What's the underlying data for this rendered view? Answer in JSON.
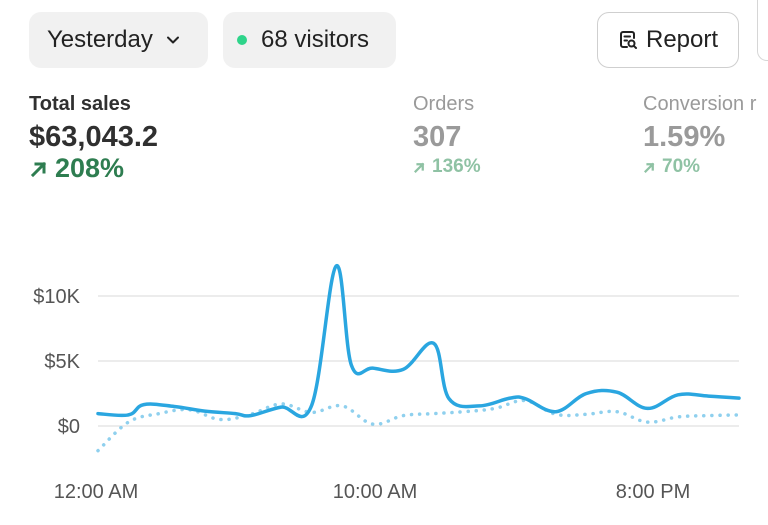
{
  "toolbar": {
    "date_range": "Yesterday",
    "visitors": "68 visitors",
    "report_label": "Report"
  },
  "metrics": [
    {
      "label": "Total sales",
      "value": "$63,043.2",
      "change": "208%"
    },
    {
      "label": "Orders",
      "value": "307",
      "change": "136%"
    },
    {
      "label": "Conversion r",
      "value": "1.59%",
      "change": "70%"
    }
  ],
  "colors": {
    "accent_line": "#2aa6e0",
    "comparison_line": "#8fd0ee",
    "visitor_dot": "#2ed48a",
    "positive_change": "#2e7d50",
    "positive_change_muted": "#8fc2a4"
  },
  "chart_data": {
    "type": "line",
    "title": "",
    "xlabel": "",
    "ylabel": "",
    "ylim": [
      -2000,
      13000
    ],
    "yticks": [
      {
        "value": 0,
        "label": "$0"
      },
      {
        "value": 5000,
        "label": "$5K"
      },
      {
        "value": 10000,
        "label": "$10K"
      }
    ],
    "xtick_labels": [
      "12:00 AM",
      "10:00 AM",
      "8:00 PM"
    ],
    "grid": true,
    "series": [
      {
        "style": "solid",
        "points": [
          [
            0,
            950
          ],
          [
            1,
            850
          ],
          [
            1.5,
            1650
          ],
          [
            2.5,
            1500
          ],
          [
            3.5,
            1150
          ],
          [
            4.5,
            950
          ],
          [
            5,
            800
          ],
          [
            6,
            1450
          ],
          [
            7,
            1600
          ],
          [
            7.8,
            12300
          ],
          [
            8.3,
            4700
          ],
          [
            9,
            4450
          ],
          [
            10,
            4350
          ],
          [
            11,
            6350
          ],
          [
            11.5,
            2100
          ],
          [
            12.5,
            1550
          ],
          [
            13.5,
            2150
          ],
          [
            14,
            2100
          ],
          [
            15,
            1100
          ],
          [
            16,
            2500
          ],
          [
            17,
            2600
          ],
          [
            18,
            1350
          ],
          [
            19,
            2400
          ],
          [
            20,
            2300
          ],
          [
            21,
            2150
          ]
        ]
      },
      {
        "style": "dotted",
        "points": [
          [
            0,
            -1900
          ],
          [
            1,
            300
          ],
          [
            2,
            950
          ],
          [
            3,
            1250
          ],
          [
            4,
            500
          ],
          [
            5,
            900
          ],
          [
            6,
            1700
          ],
          [
            7,
            1050
          ],
          [
            8,
            1550
          ],
          [
            9,
            150
          ],
          [
            10,
            800
          ],
          [
            11,
            950
          ],
          [
            12,
            1100
          ],
          [
            13,
            1350
          ],
          [
            14,
            1950
          ],
          [
            15,
            900
          ],
          [
            16,
            900
          ],
          [
            17,
            1100
          ],
          [
            18,
            300
          ],
          [
            19,
            700
          ],
          [
            20,
            800
          ],
          [
            21,
            850
          ]
        ]
      }
    ]
  }
}
